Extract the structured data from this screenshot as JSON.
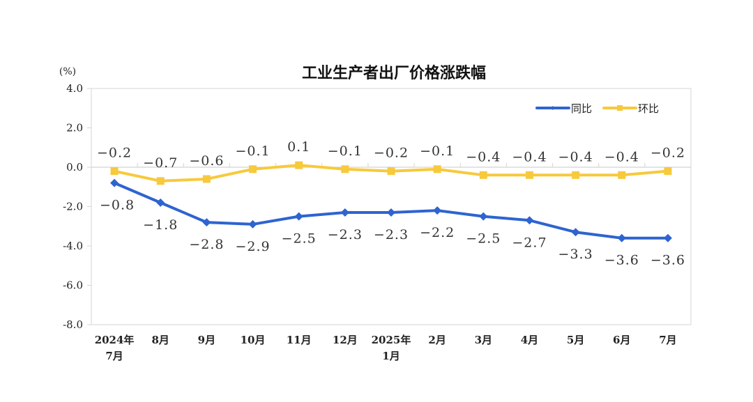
{
  "chart_data": {
    "type": "line",
    "title": "工业生产者出厂价格涨跌幅",
    "ylabel": "(%)",
    "xlabel": "",
    "ylim": [
      -8.0,
      4.0
    ],
    "yticks": [
      "4.0",
      "2.0",
      "0.0",
      "-2.0",
      "-4.0",
      "-6.0",
      "-8.0"
    ],
    "ytick_values": [
      4,
      2,
      0,
      -2,
      -4,
      -6,
      -8
    ],
    "categories": [
      "2024年7月",
      "8月",
      "9月",
      "10月",
      "11月",
      "12月",
      "2025年1月",
      "2月",
      "3月",
      "4月",
      "5月",
      "6月",
      "7月"
    ],
    "category_lines": [
      [
        "2024年",
        "7月"
      ],
      [
        "8月"
      ],
      [
        "9月"
      ],
      [
        "10月"
      ],
      [
        "11月"
      ],
      [
        "12月"
      ],
      [
        "2025年",
        "1月"
      ],
      [
        "2月"
      ],
      [
        "3月"
      ],
      [
        "4月"
      ],
      [
        "5月"
      ],
      [
        "6月"
      ],
      [
        "7月"
      ]
    ],
    "grid": false,
    "legend_position": "top-right",
    "series": [
      {
        "name": "同比",
        "color": "#2E64D0",
        "marker": "diamond",
        "values": [
          -0.8,
          -1.8,
          -2.8,
          -2.9,
          -2.5,
          -2.3,
          -2.3,
          -2.2,
          -2.5,
          -2.7,
          -3.3,
          -3.6,
          -3.6
        ],
        "labels": [
          "-0.8",
          "-1.8",
          "-2.8",
          "-2.9",
          "-2.5",
          "-2.3",
          "-2.3",
          "-2.2",
          "-2.5",
          "-2.7",
          "-3.3",
          "-3.6",
          "-3.6"
        ]
      },
      {
        "name": "环比",
        "color": "#F7C93C",
        "marker": "square",
        "values": [
          -0.2,
          -0.7,
          -0.6,
          -0.1,
          0.1,
          -0.1,
          -0.2,
          -0.1,
          -0.4,
          -0.4,
          -0.4,
          -0.4,
          -0.2
        ],
        "labels": [
          "-0.2",
          "-0.7",
          "-0.6",
          "-0.1",
          "0.1",
          "-0.1",
          "-0.2",
          "-0.1",
          "-0.4",
          "-0.4",
          "-0.4",
          "-0.4",
          "-0.2"
        ]
      }
    ]
  }
}
